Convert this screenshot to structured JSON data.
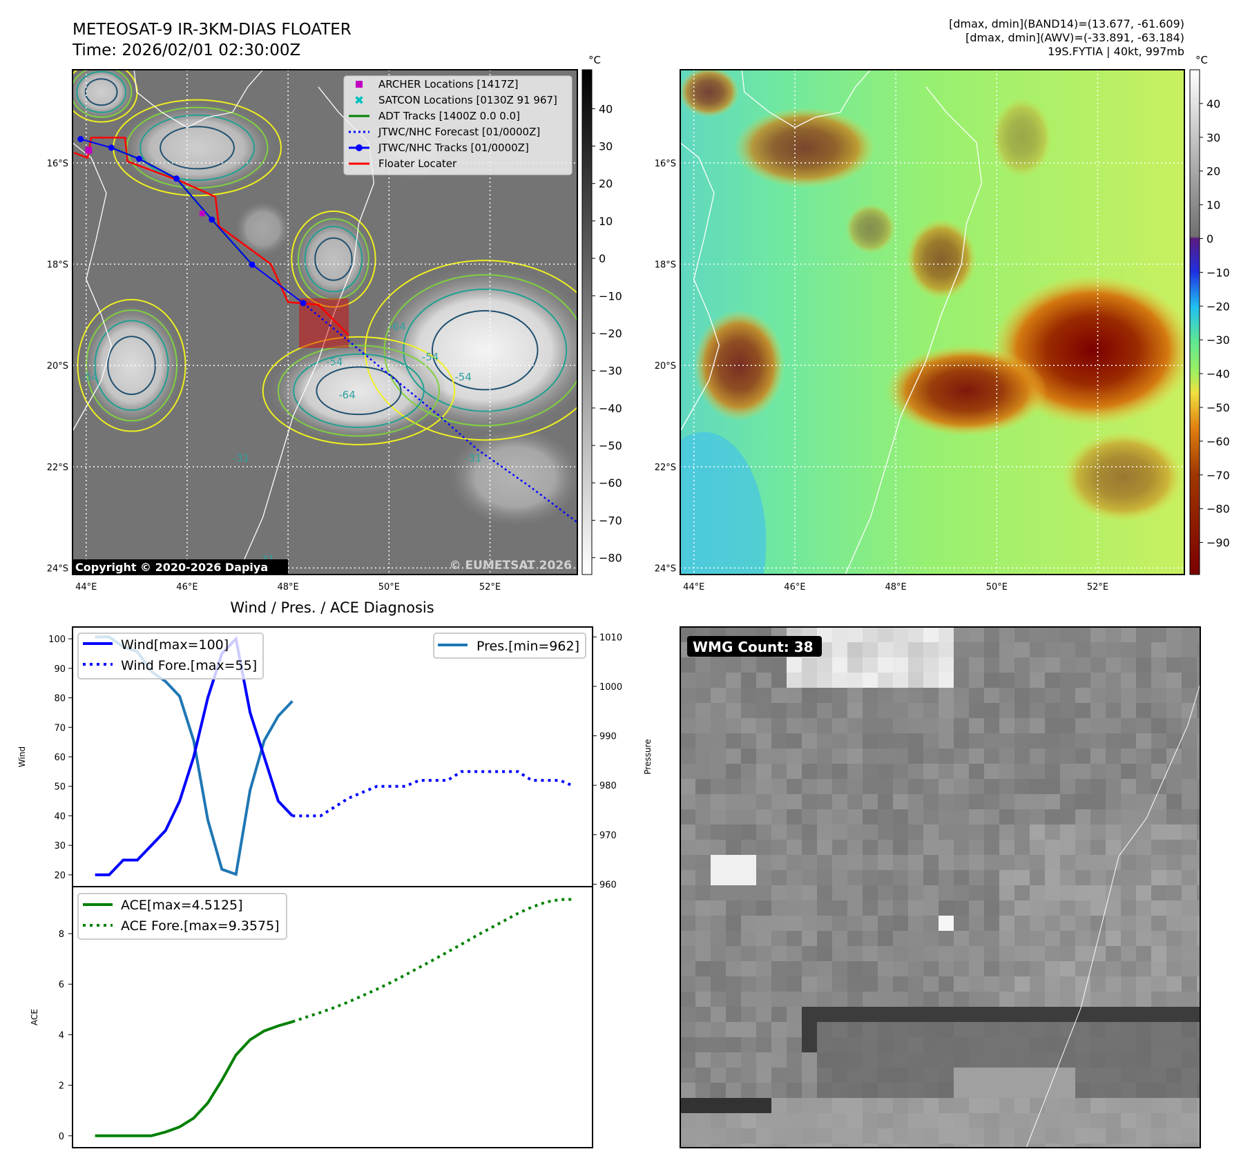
{
  "header": {
    "title_line1": "METEOSAT-9 IR-3KM-DIAS FLOATER",
    "title_line2": "Time: 2026/02/01 02:30:00Z",
    "info_line1": "[dmax, dmin](BAND14)=(13.677, -61.609)",
    "info_line2": "[dmax, dmin](AWV)=(-33.891, -63.184)",
    "info_line3": "19S.FYTIA | 40kt, 997mb"
  },
  "map": {
    "lon_ticks": [
      "44°E",
      "46°E",
      "48°E",
      "50°E",
      "52°E"
    ],
    "lon_values": [
      44,
      46,
      48,
      50,
      52
    ],
    "lat_ticks": [
      "16°S",
      "18°S",
      "20°S",
      "22°S",
      "24°S"
    ],
    "lat_values": [
      16,
      18,
      20,
      22,
      24
    ],
    "lon_range": [
      43.73,
      53.73
    ],
    "lat_range": [
      14.16,
      24.13
    ],
    "copyright": "Copyright © 2020-2026 Dapiya",
    "watermark": "© EUMETSAT 2026",
    "contour_labels": [
      "-54",
      "-64",
      "-54",
      "-64",
      "-54",
      "-31",
      "-31",
      "-31",
      "-54"
    ],
    "legend": [
      {
        "label": "ARCHER Locations [1417Z]",
        "color": "#c000c0",
        "marker": "square"
      },
      {
        "label": "SATCON Locations [0130Z 91 967]",
        "color": "#00c0c0",
        "marker": "x"
      },
      {
        "label": "ADT Tracks [1400Z 0.0 0.0]",
        "color": "#008000",
        "marker": "line"
      },
      {
        "label": "JTWC/NHC Forecast [01/0000Z]",
        "color": "#0000ff",
        "marker": "dotted"
      },
      {
        "label": "JTWC/NHC Tracks [01/0000Z]",
        "color": "#0000ff",
        "marker": "line-dot"
      },
      {
        "label": "Floater Locater",
        "color": "#ff0000",
        "marker": "line"
      }
    ],
    "track_obs": [
      [
        43.89,
        15.53
      ],
      [
        44.5,
        15.7
      ],
      [
        45.05,
        15.92
      ],
      [
        45.79,
        16.31
      ],
      [
        46.49,
        17.12
      ],
      [
        47.29,
        18.01
      ],
      [
        48.3,
        18.77
      ]
    ],
    "track_fcst": [
      [
        48.3,
        18.77
      ],
      [
        49.3,
        19.6
      ],
      [
        50.17,
        20.32
      ],
      [
        51.0,
        21.0
      ],
      [
        51.75,
        21.66
      ],
      [
        52.8,
        22.4
      ],
      [
        53.73,
        23.1
      ]
    ],
    "floater": [
      [
        43.76,
        15.8
      ],
      [
        44.03,
        15.9
      ],
      [
        44.1,
        15.5
      ],
      [
        44.77,
        15.5
      ],
      [
        44.82,
        15.97
      ],
      [
        45.89,
        16.37
      ],
      [
        46.56,
        16.67
      ],
      [
        46.63,
        17.25
      ],
      [
        47.66,
        18.0
      ],
      [
        48.0,
        18.75
      ],
      [
        48.6,
        18.8
      ],
      [
        49.2,
        19.4
      ]
    ]
  },
  "colorbar_ir": {
    "unit": "°C",
    "ticks": [
      "40",
      "30",
      "20",
      "10",
      "0",
      "−10",
      "−20",
      "−30",
      "−40",
      "−50",
      "−60",
      "−70",
      "−80"
    ],
    "values": [
      40,
      30,
      20,
      10,
      0,
      -10,
      -20,
      -30,
      -40,
      -50,
      -60,
      -70,
      -80
    ],
    "range": [
      50.4,
      -84.5
    ]
  },
  "colorbar_awv": {
    "unit": "°C",
    "ticks": [
      "40",
      "30",
      "20",
      "10",
      "0",
      "−10",
      "−20",
      "−30",
      "−40",
      "−50",
      "−60",
      "−70",
      "−80",
      "−90"
    ],
    "values": [
      40,
      30,
      20,
      10,
      0,
      -10,
      -20,
      -30,
      -40,
      -50,
      -60,
      -70,
      -80,
      -90
    ],
    "range": [
      50,
      -99.5
    ]
  },
  "wmg": {
    "label": "WMG Count: 38"
  },
  "chart_data": [
    {
      "type": "line",
      "title": "Wind / Pres. / ACE Diagnosis",
      "ylabel": "Wind",
      "y2label": "Pressure",
      "ylim": [
        16,
        104
      ],
      "y2lim": [
        959.5,
        1012
      ],
      "xlim": [
        -1.6,
        35.3
      ],
      "yticks": [
        20,
        30,
        40,
        50,
        60,
        70,
        80,
        90,
        100
      ],
      "y2ticks": [
        960,
        970,
        980,
        990,
        1000,
        1010
      ],
      "series": [
        {
          "name": "Wind[max=100]",
          "axis": "left",
          "color": "#0000ff",
          "style": "solid",
          "x": [
            0,
            1,
            2,
            3,
            4,
            5,
            6,
            7,
            8,
            9,
            10,
            11,
            12,
            13,
            14
          ],
          "values": [
            20,
            20,
            25,
            25,
            30,
            35,
            45,
            60,
            80,
            95,
            100,
            75,
            60,
            45,
            40
          ]
        },
        {
          "name": "Wind Fore.[max=55]",
          "axis": "left",
          "color": "#0000ff",
          "style": "dotted",
          "x": [
            14,
            15,
            16,
            17,
            18,
            19,
            20,
            21,
            22,
            23,
            24,
            25,
            26,
            27,
            28,
            29,
            30,
            31,
            32,
            33,
            34
          ],
          "values": [
            40,
            40,
            40,
            43,
            46,
            48,
            50,
            50,
            50,
            52,
            52,
            52,
            55,
            55,
            55,
            55,
            55,
            52,
            52,
            52,
            50
          ]
        },
        {
          "name": "Pres.[min=962]",
          "axis": "right",
          "color": "#1f77b4",
          "style": "solid",
          "x": [
            0,
            1,
            2,
            3,
            4,
            5,
            6,
            7,
            8,
            9,
            10,
            11,
            12,
            13,
            14
          ],
          "values": [
            1010,
            1010,
            1008,
            1007,
            1003,
            1001,
            998,
            989,
            973,
            963,
            962,
            979,
            989,
            994,
            997
          ]
        }
      ],
      "legend_left": "upper left",
      "legend_right": "upper right"
    },
    {
      "type": "line",
      "ylabel": "ACE",
      "ylim": [
        -0.47,
        9.86
      ],
      "xlim": [
        -1.6,
        35.3
      ],
      "yticks": [
        0,
        2,
        4,
        6,
        8
      ],
      "series": [
        {
          "name": "ACE[max=4.5125]",
          "color": "#008000",
          "style": "solid",
          "x": [
            0,
            1,
            2,
            3,
            4,
            5,
            6,
            7,
            8,
            9,
            10,
            11,
            12,
            13,
            14
          ],
          "values": [
            0,
            0,
            0,
            0,
            0,
            0.15,
            0.35,
            0.7,
            1.3,
            2.2,
            3.2,
            3.8,
            4.15,
            4.35,
            4.5125
          ]
        },
        {
          "name": "ACE Fore.[max=9.3575]",
          "color": "#008000",
          "style": "dotted",
          "x": [
            14,
            15,
            16,
            17,
            18,
            19,
            20,
            21,
            22,
            23,
            24,
            25,
            26,
            27,
            28,
            29,
            30,
            31,
            32,
            33,
            34
          ],
          "values": [
            4.5125,
            4.7,
            4.88,
            5.08,
            5.3,
            5.55,
            5.8,
            6.07,
            6.36,
            6.66,
            6.96,
            7.27,
            7.58,
            7.9,
            8.2,
            8.5,
            8.8,
            9.05,
            9.25,
            9.35,
            9.3575
          ]
        }
      ],
      "legend": "upper left"
    }
  ]
}
